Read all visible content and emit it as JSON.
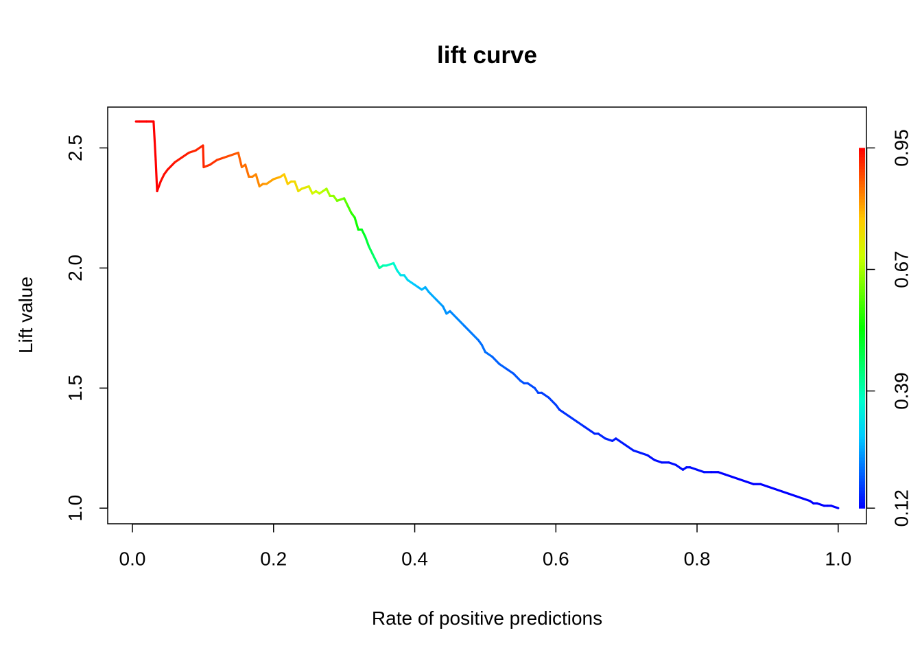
{
  "chart_data": {
    "type": "line",
    "title": "lift curve",
    "xlabel": "Rate of positive predictions",
    "ylabel": "Lift value",
    "xlim": [
      -0.035,
      1.04
    ],
    "ylim": [
      0.935,
      2.67
    ],
    "x_ticks": [
      0.0,
      0.2,
      0.4,
      0.6,
      0.8,
      1.0
    ],
    "x_tick_labels": [
      "0.0",
      "0.2",
      "0.4",
      "0.6",
      "0.8",
      "1.0"
    ],
    "y_ticks": [
      1.0,
      1.5,
      2.0,
      2.5
    ],
    "y_tick_labels": [
      "1.0",
      "1.5",
      "2.0",
      "2.5"
    ],
    "grid": false,
    "colorbar": {
      "label_values": [
        0.12,
        0.39,
        0.67,
        0.95
      ],
      "tick_labels": [
        "0.12",
        "0.39",
        "0.67",
        "0.95"
      ],
      "colors": [
        "#0000ff",
        "#0066ff",
        "#00ccff",
        "#00ffcc",
        "#00ff66",
        "#00ff00",
        "#66ff00",
        "#ccff00",
        "#ffcc00",
        "#ff6600",
        "#ff0000"
      ]
    },
    "series": [
      {
        "x": [
          0.005,
          0.01,
          0.02,
          0.03,
          0.033,
          0.035,
          0.04,
          0.045,
          0.05,
          0.06,
          0.07,
          0.08,
          0.09,
          0.1,
          0.101,
          0.11,
          0.12,
          0.13,
          0.14,
          0.15,
          0.155,
          0.16,
          0.165,
          0.17,
          0.175,
          0.18,
          0.185,
          0.19,
          0.2,
          0.21,
          0.215,
          0.22,
          0.225,
          0.23,
          0.235,
          0.24,
          0.25,
          0.255,
          0.26,
          0.265,
          0.27,
          0.275,
          0.28,
          0.285,
          0.29,
          0.3,
          0.305,
          0.31,
          0.315,
          0.32,
          0.325,
          0.33,
          0.335,
          0.34,
          0.345,
          0.35,
          0.355,
          0.36,
          0.37,
          0.375,
          0.38,
          0.385,
          0.39,
          0.395,
          0.4,
          0.405,
          0.41,
          0.415,
          0.42,
          0.43,
          0.44,
          0.445,
          0.45,
          0.46,
          0.47,
          0.48,
          0.49,
          0.495,
          0.5,
          0.51,
          0.52,
          0.53,
          0.54,
          0.55,
          0.555,
          0.56,
          0.57,
          0.575,
          0.58,
          0.59,
          0.6,
          0.605,
          0.61,
          0.62,
          0.63,
          0.64,
          0.65,
          0.655,
          0.66,
          0.67,
          0.68,
          0.685,
          0.69,
          0.7,
          0.71,
          0.72,
          0.73,
          0.74,
          0.75,
          0.76,
          0.77,
          0.78,
          0.785,
          0.79,
          0.8,
          0.81,
          0.82,
          0.83,
          0.84,
          0.85,
          0.86,
          0.87,
          0.88,
          0.89,
          0.9,
          0.91,
          0.92,
          0.93,
          0.94,
          0.95,
          0.96,
          0.965,
          0.97,
          0.98,
          0.985,
          0.99,
          1.0
        ],
        "y": [
          2.61,
          2.61,
          2.61,
          2.61,
          2.45,
          2.32,
          2.36,
          2.39,
          2.41,
          2.44,
          2.46,
          2.48,
          2.49,
          2.51,
          2.42,
          2.43,
          2.45,
          2.46,
          2.47,
          2.48,
          2.42,
          2.43,
          2.38,
          2.38,
          2.39,
          2.34,
          2.35,
          2.35,
          2.37,
          2.38,
          2.39,
          2.35,
          2.36,
          2.36,
          2.32,
          2.33,
          2.34,
          2.31,
          2.32,
          2.31,
          2.32,
          2.33,
          2.3,
          2.3,
          2.28,
          2.29,
          2.26,
          2.23,
          2.21,
          2.16,
          2.16,
          2.13,
          2.09,
          2.06,
          2.03,
          2.0,
          2.01,
          2.01,
          2.02,
          1.99,
          1.97,
          1.97,
          1.95,
          1.94,
          1.93,
          1.92,
          1.91,
          1.92,
          1.9,
          1.87,
          1.84,
          1.81,
          1.82,
          1.79,
          1.76,
          1.73,
          1.7,
          1.68,
          1.65,
          1.63,
          1.6,
          1.58,
          1.56,
          1.53,
          1.52,
          1.52,
          1.5,
          1.48,
          1.48,
          1.46,
          1.43,
          1.41,
          1.4,
          1.38,
          1.36,
          1.34,
          1.32,
          1.31,
          1.31,
          1.29,
          1.28,
          1.29,
          1.28,
          1.26,
          1.24,
          1.23,
          1.22,
          1.2,
          1.19,
          1.19,
          1.18,
          1.16,
          1.17,
          1.17,
          1.16,
          1.15,
          1.15,
          1.15,
          1.14,
          1.13,
          1.12,
          1.11,
          1.1,
          1.1,
          1.09,
          1.08,
          1.07,
          1.06,
          1.05,
          1.04,
          1.03,
          1.02,
          1.02,
          1.01,
          1.01,
          1.01,
          1.0
        ],
        "cutoff": [
          0.95,
          0.95,
          0.95,
          0.95,
          0.95,
          0.95,
          0.94,
          0.94,
          0.94,
          0.93,
          0.93,
          0.92,
          0.92,
          0.92,
          0.91,
          0.91,
          0.9,
          0.89,
          0.88,
          0.87,
          0.86,
          0.86,
          0.85,
          0.84,
          0.84,
          0.83,
          0.83,
          0.82,
          0.81,
          0.79,
          0.78,
          0.78,
          0.77,
          0.76,
          0.75,
          0.74,
          0.72,
          0.71,
          0.7,
          0.69,
          0.68,
          0.67,
          0.66,
          0.65,
          0.63,
          0.61,
          0.59,
          0.57,
          0.55,
          0.53,
          0.51,
          0.49,
          0.47,
          0.45,
          0.43,
          0.41,
          0.39,
          0.38,
          0.36,
          0.34,
          0.32,
          0.31,
          0.3,
          0.29,
          0.28,
          0.27,
          0.27,
          0.26,
          0.26,
          0.25,
          0.24,
          0.24,
          0.23,
          0.23,
          0.22,
          0.22,
          0.21,
          0.21,
          0.21,
          0.2,
          0.2,
          0.19,
          0.19,
          0.19,
          0.18,
          0.18,
          0.18,
          0.17,
          0.17,
          0.17,
          0.17,
          0.16,
          0.16,
          0.16,
          0.16,
          0.15,
          0.15,
          0.15,
          0.15,
          0.15,
          0.14,
          0.14,
          0.14,
          0.14,
          0.14,
          0.14,
          0.13,
          0.13,
          0.13,
          0.13,
          0.13,
          0.13,
          0.13,
          0.13,
          0.13,
          0.13,
          0.12,
          0.12,
          0.12,
          0.12,
          0.12,
          0.12,
          0.12,
          0.12,
          0.12,
          0.12,
          0.12,
          0.12,
          0.12,
          0.12,
          0.12,
          0.12,
          0.12,
          0.12,
          0.12,
          0.12,
          0.12,
          0.12
        ]
      }
    ]
  }
}
